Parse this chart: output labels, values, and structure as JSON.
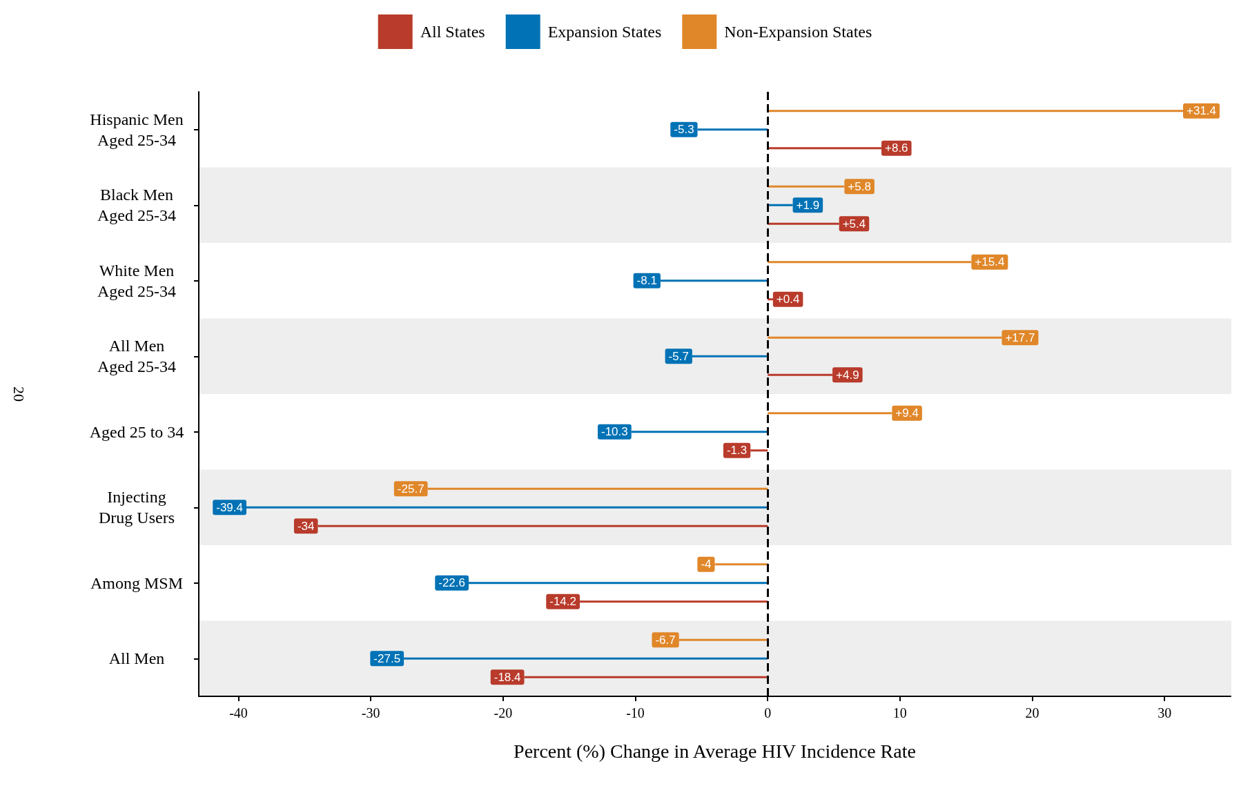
{
  "chart_data": {
    "type": "bar",
    "orientation": "horizontal",
    "categories": [
      "Hispanic Men\nAged 25-34",
      "Black Men\nAged 25-34",
      "White Men\nAged 25-34",
      "All Men\nAged 25-34",
      "Aged 25 to 34",
      "Injecting\nDrug Users",
      "Among MSM",
      "All Men"
    ],
    "series": [
      {
        "name": "All States",
        "color": "#b83b2b",
        "values": [
          8.6,
          5.4,
          0.4,
          4.9,
          -1.3,
          -34,
          -14.2,
          -18.4
        ],
        "value_labels": [
          "+8.6",
          "+5.4",
          "+0.4",
          "+4.9",
          "-1.3",
          "-34",
          "-14.2",
          "-18.4"
        ]
      },
      {
        "name": "Expansion States",
        "color": "#0072b5",
        "values": [
          -5.3,
          1.9,
          -8.1,
          -5.7,
          -10.3,
          -39.4,
          -22.6,
          -27.5
        ],
        "value_labels": [
          "-5.3",
          "+1.9",
          "-8.1",
          "-5.7",
          "-10.3",
          "-39.4",
          "-22.6",
          "-27.5"
        ]
      },
      {
        "name": "Non-Expansion States",
        "color": "#e0872a",
        "values": [
          31.4,
          5.8,
          15.4,
          17.7,
          9.4,
          -25.7,
          -4,
          -6.7
        ],
        "value_labels": [
          "+31.4",
          "+5.8",
          "+15.4",
          "+17.7",
          "+9.4",
          "-25.7",
          "-4",
          "-6.7"
        ]
      }
    ],
    "xlim": [
      -43,
      35
    ],
    "xticks": [
      -40,
      -30,
      -20,
      -10,
      0,
      10,
      20,
      30
    ],
    "xlabel": "Percent (%) Change in Average HIV Incidence Rate",
    "ylabel": "20",
    "legend": "top",
    "ref_lines": [
      {
        "axis": "x",
        "value": 0,
        "color": "#000000",
        "line_style": "dashed"
      }
    ],
    "bands": [
      {
        "axis": "y",
        "from": "Black Men\nAged 25-34",
        "to": "Black Men\nAged 25-34",
        "color": "#eeeeee"
      },
      {
        "axis": "y",
        "from": "All Men\nAged 25-34",
        "to": "All Men\nAged 25-34",
        "color": "#eeeeee"
      },
      {
        "axis": "y",
        "from": "Injecting\nDrug Users",
        "to": "Injecting\nDrug Users",
        "color": "#eeeeee"
      },
      {
        "axis": "y",
        "from": "All Men",
        "to": "All Men",
        "color": "#eeeeee"
      }
    ]
  }
}
